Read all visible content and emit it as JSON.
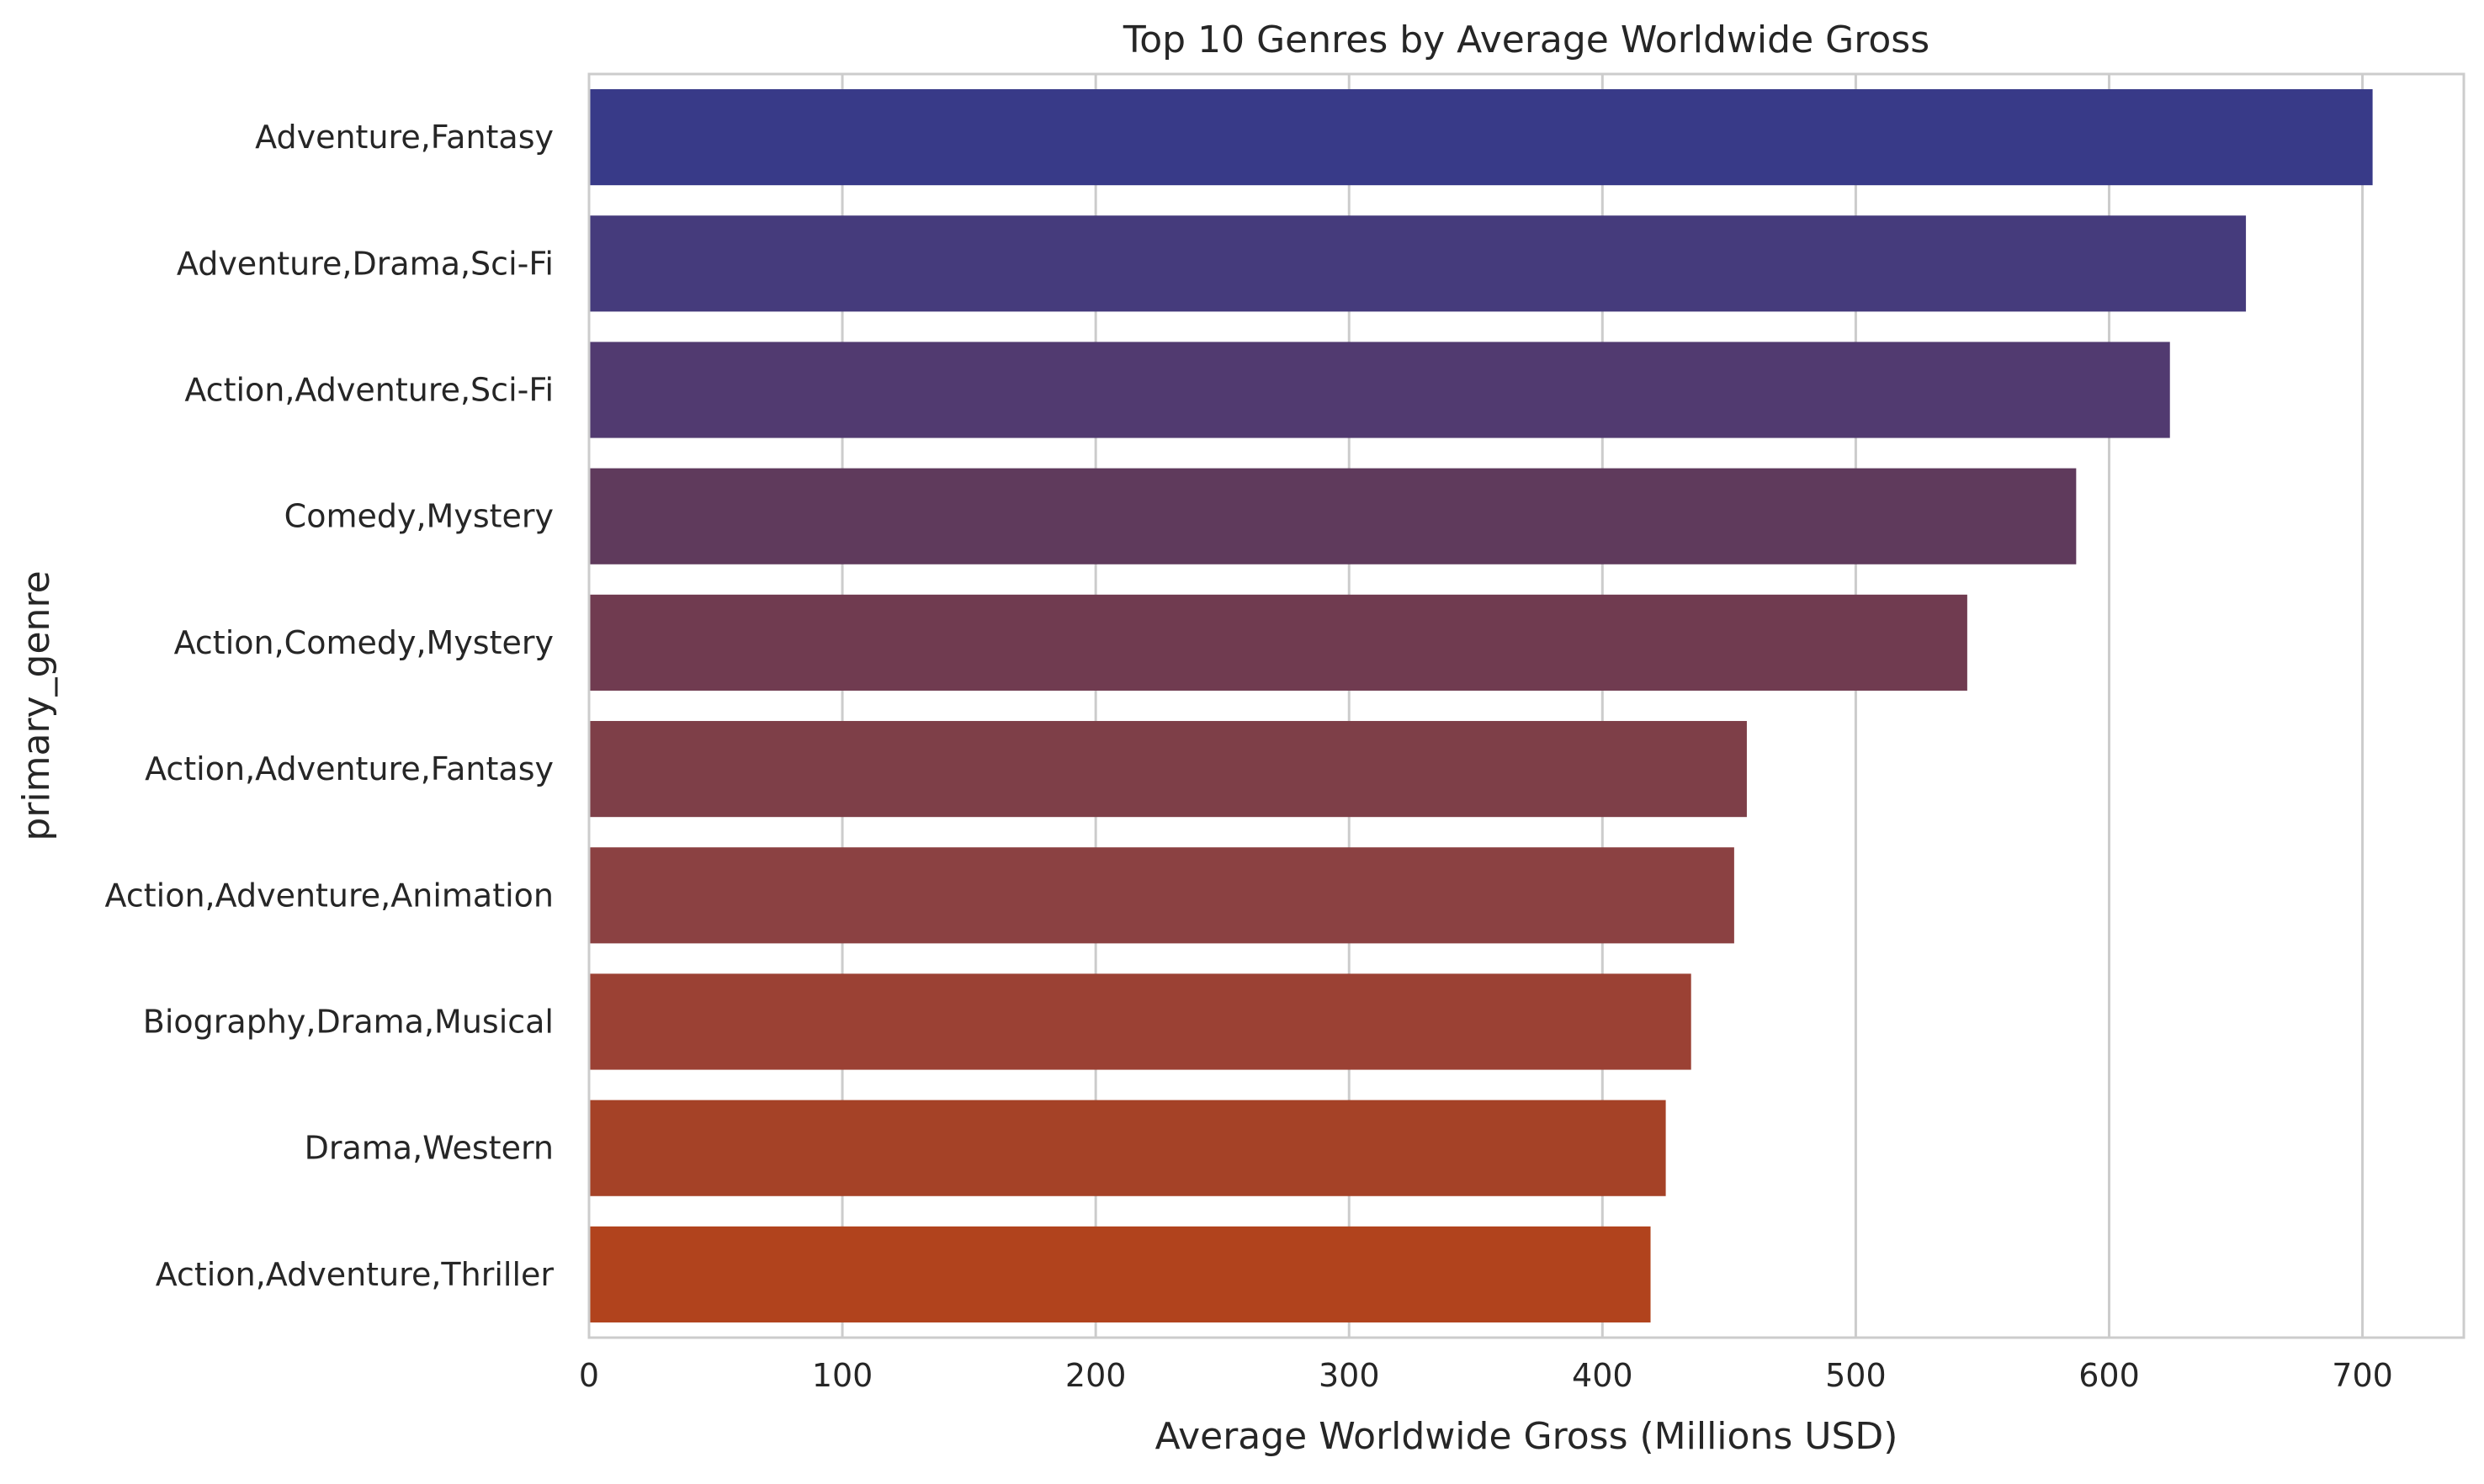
{
  "chart_data": {
    "type": "bar",
    "orientation": "horizontal",
    "title": "Top 10 Genres by Average Worldwide Gross",
    "xlabel": "Average Worldwide Gross (Millions USD)",
    "ylabel": "primary_genre",
    "xlim": [
      0,
      740
    ],
    "xticks": [
      0,
      100,
      200,
      300,
      400,
      500,
      600,
      700
    ],
    "grid": "vertical",
    "categories": [
      "Adventure,Fantasy",
      "Adventure,Drama,Sci-Fi",
      "Action,Adventure,Sci-Fi",
      "Comedy,Mystery",
      "Action,Comedy,Mystery",
      "Action,Adventure,Fantasy",
      "Action,Adventure,Animation",
      "Biography,Drama,Musical",
      "Drama,Western",
      "Action,Adventure,Thriller"
    ],
    "values": [
      704,
      654,
      624,
      587,
      544,
      457,
      452,
      435,
      425,
      419
    ],
    "colors": [
      "#383a88",
      "#453b7c",
      "#513a70",
      "#5f3a5c",
      "#703b50",
      "#7e3f48",
      "#8b4142",
      "#9b4134",
      "#a54227",
      "#b1431d"
    ]
  }
}
